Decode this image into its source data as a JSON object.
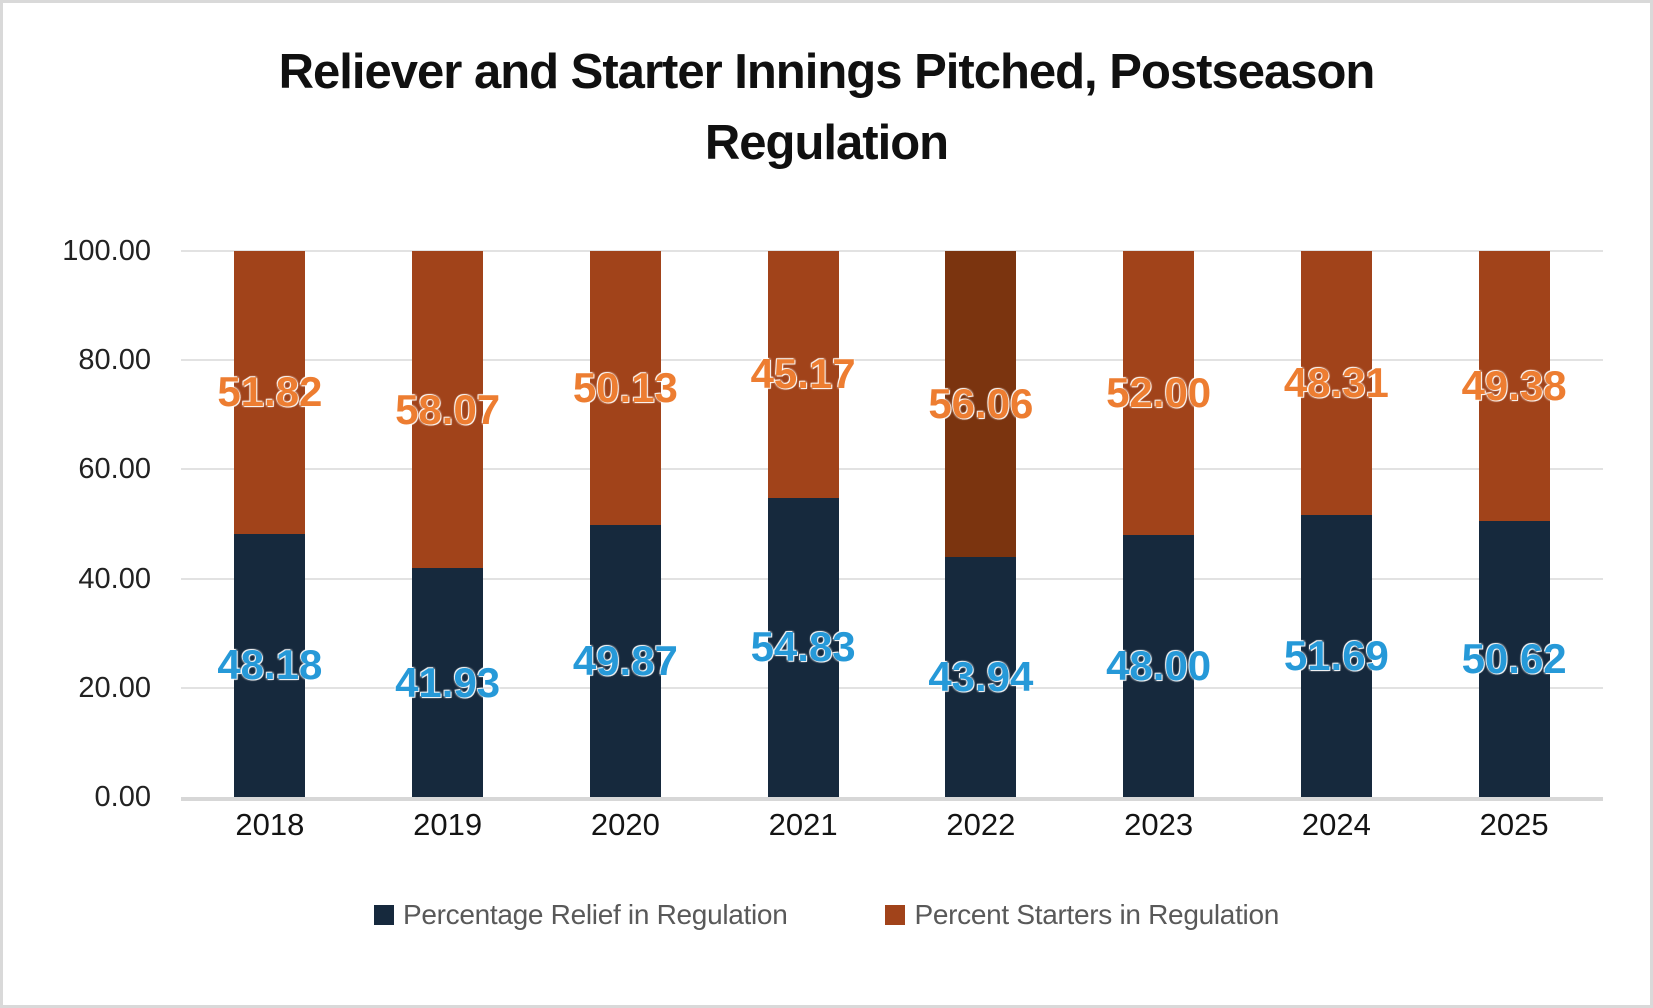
{
  "frame": {
    "background": "#ffffff",
    "border_color": "#d9d9d9"
  },
  "chart_data": {
    "type": "bar",
    "stacked": true,
    "title": "Reliever and Starter Innings Pitched, Postseason\nRegulation",
    "categories": [
      "2018",
      "2019",
      "2020",
      "2021",
      "2022",
      "2023",
      "2024",
      "2025"
    ],
    "series": [
      {
        "name": "Percentage Relief in Regulation",
        "color": "#16293d",
        "label_color": "#2699d8",
        "values": [
          48.18,
          41.93,
          49.87,
          54.83,
          43.94,
          48.0,
          51.69,
          50.62
        ]
      },
      {
        "name": "Percent Starters in Regulation",
        "color": "#a1431a",
        "label_color": "#ed7d31",
        "values": [
          51.82,
          58.07,
          50.13,
          45.17,
          56.06,
          52.0,
          48.31,
          49.38
        ],
        "bar_colors": [
          null,
          null,
          null,
          null,
          "#7b340f",
          null,
          null,
          null
        ]
      }
    ],
    "ylim": [
      0,
      100
    ],
    "y_ticks": [
      "100.00",
      "80.00",
      "60.00",
      "40.00",
      "20.00",
      "0.00"
    ],
    "grid": true,
    "legend_position": "bottom",
    "value_label_decimals": 2
  }
}
